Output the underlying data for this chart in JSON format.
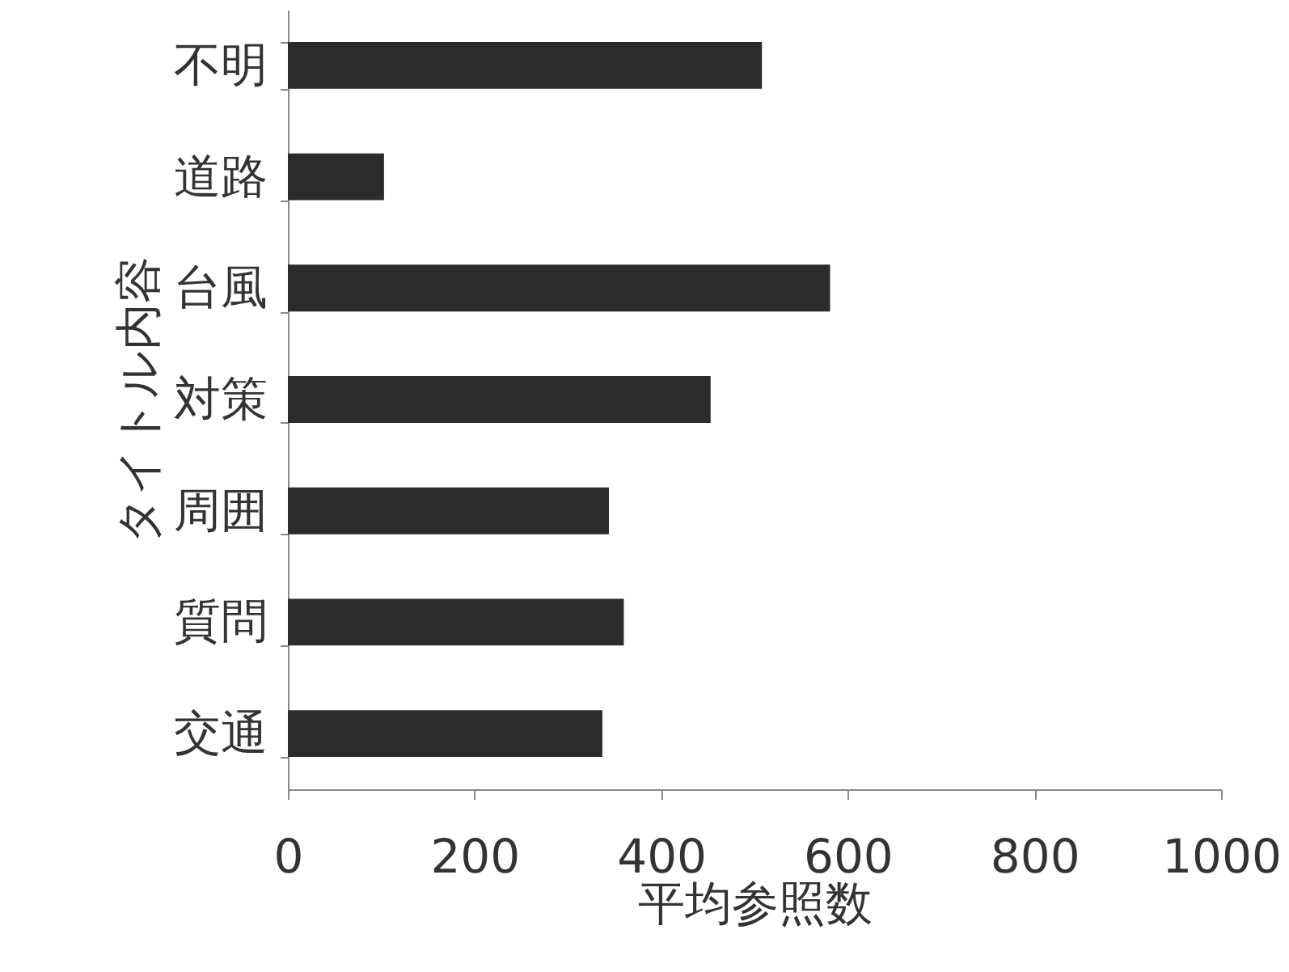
{
  "chart_data": {
    "type": "bar",
    "orientation": "horizontal",
    "xlabel": "平均参照数",
    "ylabel": "タイトル内容",
    "categories": [
      "不明",
      "道路",
      "台風",
      "対策",
      "周囲",
      "質問",
      "交通"
    ],
    "values": [
      508,
      103,
      581,
      453,
      344,
      360,
      337
    ],
    "color": "#2b2b2b",
    "xlim": [
      0,
      1000
    ],
    "xticks": [
      0,
      200,
      400,
      600,
      800,
      1000
    ],
    "grid": false
  }
}
